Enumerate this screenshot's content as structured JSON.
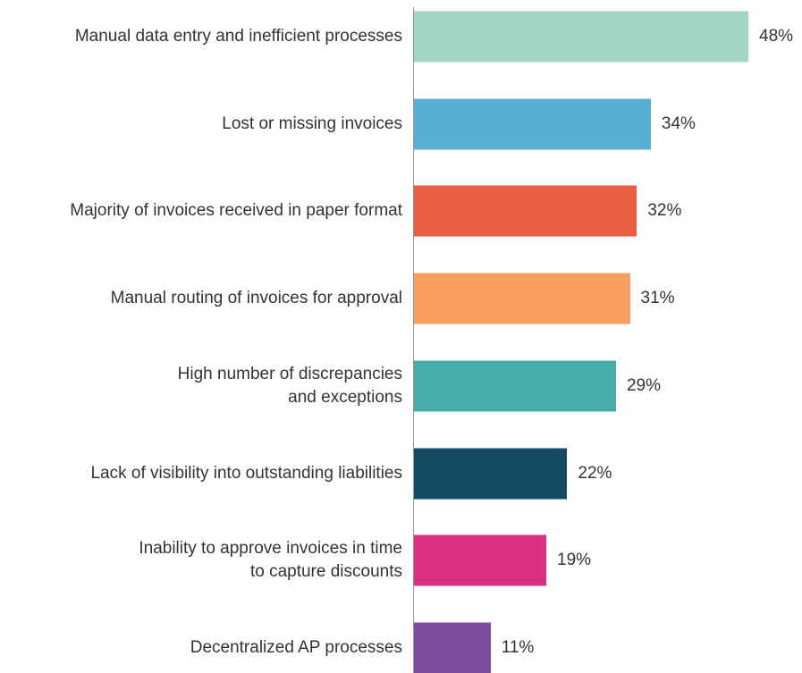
{
  "chart_data": {
    "type": "barh",
    "categories": [
      "Manual data entry and inefficient processes",
      "Lost or missing invoices",
      "Majority of invoices received in paper format",
      "Manual routing of invoices for approval",
      "High number of discrepancies\nand exceptions",
      "Lack of visibility into outstanding liabilities",
      "Inability to approve invoices in time\nto capture discounts",
      "Decentralized AP processes"
    ],
    "values": [
      48,
      34,
      32,
      31,
      29,
      22,
      19,
      11
    ],
    "value_labels": [
      "48%",
      "34%",
      "32%",
      "31%",
      "29%",
      "22%",
      "19%",
      "11%"
    ],
    "colors": [
      "#a3d5c3",
      "#5aafd6",
      "#e85f45",
      "#f9a05e",
      "#4aaca8",
      "#154a65",
      "#d92e82",
      "#7d4c9e"
    ]
  }
}
